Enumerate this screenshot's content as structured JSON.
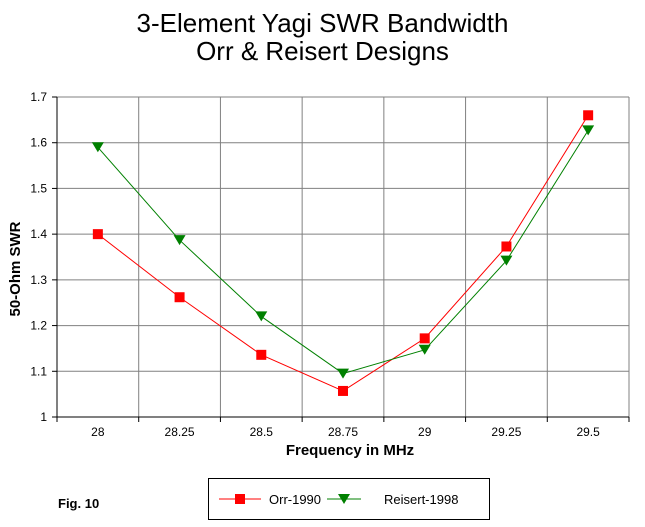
{
  "chart_data": {
    "type": "line",
    "title": [
      "3-Element Yagi SWR Bandwidth",
      "Orr & Reisert Designs"
    ],
    "xlabel": "Frequency in MHz",
    "ylabel": "50-Ohm SWR",
    "categories": [
      "28",
      "28.25",
      "28.5",
      "28.75",
      "29",
      "29.25",
      "29.5"
    ],
    "x": [
      28,
      28.25,
      28.5,
      28.75,
      29,
      29.25,
      29.5
    ],
    "ylim": [
      1,
      1.7
    ],
    "yticks": [
      1,
      1.1,
      1.2,
      1.3,
      1.4,
      1.5,
      1.6,
      1.7
    ],
    "ytick_labels": [
      "1",
      "1.1",
      "1.2",
      "1.3",
      "1.4",
      "1.5",
      "1.6",
      "1.7"
    ],
    "grid": true,
    "series": [
      {
        "name": "Orr-1990",
        "color": "#ff0000",
        "marker": "square",
        "values": [
          1.4,
          1.262,
          1.136,
          1.057,
          1.172,
          1.373,
          1.66
        ]
      },
      {
        "name": "Reisert-1998",
        "color": "#008000",
        "marker": "triangle-down",
        "values": [
          1.59,
          1.387,
          1.22,
          1.095,
          1.147,
          1.342,
          1.627
        ]
      }
    ]
  },
  "caption": "Fig. 10"
}
